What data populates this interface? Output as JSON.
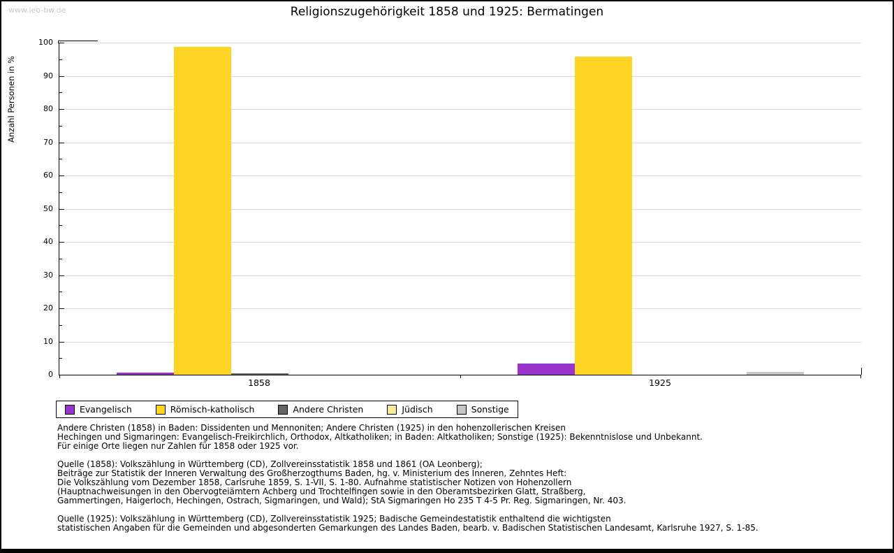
{
  "watermark": "www.leo-bw.de",
  "chart_data": {
    "type": "bar",
    "title": "Religionszugehörigkeit 1858 und 1925: Bermatingen",
    "xlabel": "",
    "ylabel": "Anzahl Personen in %",
    "ylim": [
      0,
      100
    ],
    "ytick_step": 10,
    "minor_tick_step": 5,
    "grid": true,
    "legend_position": "bottom-left",
    "categories": [
      "1858",
      "1925"
    ],
    "series": [
      {
        "name": "Evangelisch",
        "color": "#9933cc",
        "values": [
          0.6,
          3.3
        ]
      },
      {
        "name": "Römisch-katholisch",
        "color": "#fdd423",
        "values": [
          98.8,
          95.8
        ]
      },
      {
        "name": "Andere Christen",
        "color": "#646464",
        "values": [
          0.5,
          0
        ]
      },
      {
        "name": "Jüdisch",
        "color": "#f7eb96",
        "values": [
          0,
          0
        ]
      },
      {
        "name": "Sonstige",
        "color": "#c6c6c6",
        "values": [
          0,
          0.8
        ]
      }
    ]
  },
  "notes": {
    "block1": "Andere Christen (1858) in Baden: Dissidenten und Mennoniten; Andere Christen (1925) in den hohenzollerischen Kreisen\nHechingen und Sigmaringen: Evangelisch-Freikirchlich, Orthodox, Altkatholiken; in Baden: Altkatholiken; Sonstige (1925): Bekenntnislose und Unbekannt.\nFür einige Orte liegen nur Zahlen für 1858 oder 1925 vor.",
    "block2": "Quelle (1858): Volkszählung in Württemberg (CD), Zollvereinsstatistik 1858 und 1861 (OA Leonberg);\nBeiträge zur Statistik der Inneren Verwaltung des Großherzogthums Baden, hg. v. Ministerium des Inneren, Zehntes Heft:\nDie Volkszählung vom Dezember 1858, Carlsruhe 1859, S. 1-VII, S. 1-80. Aufnahme statistischer Notizen von Hohenzollern\n(Hauptnachweisungen in den Obervogteiämtern Achberg und Trochtelfingen sowie in den Oberamtsbezirken Glatt, Straßberg,\nGammertingen, Haigerloch, Hechingen, Ostrach, Sigmaringen, und Wald); StA Sigmaringen Ho 235 T 4-5 Pr. Reg. Sigmaringen, Nr. 403.",
    "block3": "Quelle (1925): Volkszählung in Württemberg (CD), Zollvereinsstatistik 1925; Badische Gemeindestatistik enthaltend die wichtigsten\nstatistischen Angaben für die Gemeinden und abgesonderten Gemarkungen des Landes Baden, bearb. v. Badischen Statistischen Landesamt, Karlsruhe 1927, S. 1-85."
  }
}
